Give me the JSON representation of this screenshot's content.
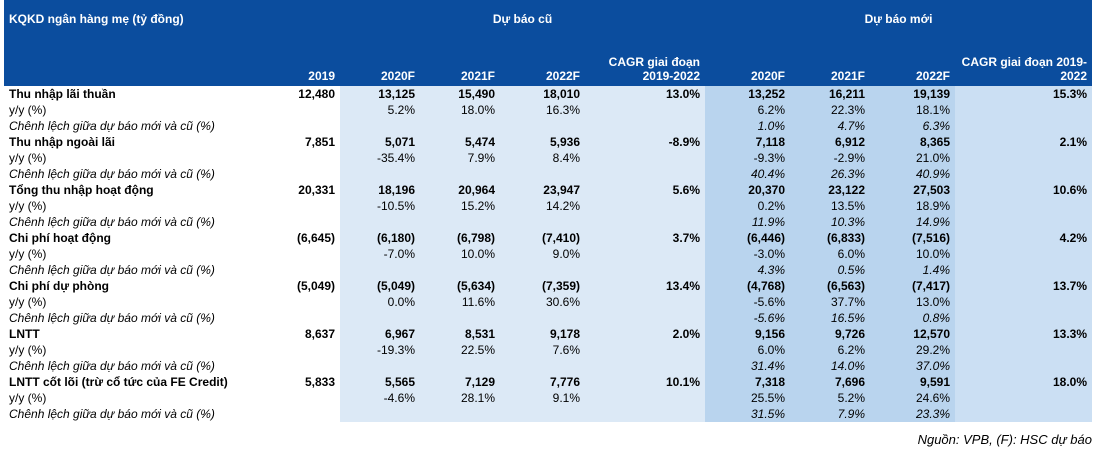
{
  "header": {
    "title": "KQKD ngân hàng mẹ (tỷ đồng)",
    "old_group": "Dự báo cũ",
    "new_group": "Dự báo mới",
    "columns": [
      "2019",
      "2020F",
      "2021F",
      "2022F",
      "CAGR giai đoạn 2019-2022",
      "2020F",
      "2021F",
      "2022F",
      "CAGR giai đoạn 2019-2022"
    ]
  },
  "rows": [
    [
      "Thu nhập lãi thuần",
      "12,480",
      "13,125",
      "15,490",
      "18,010",
      "13.0%",
      "13,252",
      "16,211",
      "19,139",
      "15.3%"
    ],
    [
      "y/y (%)",
      null,
      "5.2%",
      "18.0%",
      "16.3%",
      null,
      "6.2%",
      "22.3%",
      "18.1%",
      null
    ],
    [
      "Chênh lệch giữa dự báo mới và cũ (%)",
      null,
      null,
      null,
      null,
      null,
      "1.0%",
      "4.7%",
      "6.3%",
      null
    ],
    [
      "Thu nhập ngoài lãi",
      "7,851",
      "5,071",
      "5,474",
      "5,936",
      "-8.9%",
      "7,118",
      "6,912",
      "8,365",
      "2.1%"
    ],
    [
      "y/y (%)",
      null,
      "-35.4%",
      "7.9%",
      "8.4%",
      null,
      "-9.3%",
      "-2.9%",
      "21.0%",
      null
    ],
    [
      "Chênh lệch giữa dự báo mới và cũ (%)",
      null,
      null,
      null,
      null,
      null,
      "40.4%",
      "26.3%",
      "40.9%",
      null
    ],
    [
      "Tổng thu nhập hoạt động",
      "20,331",
      "18,196",
      "20,964",
      "23,947",
      "5.6%",
      "20,370",
      "23,122",
      "27,503",
      "10.6%"
    ],
    [
      "y/y (%)",
      null,
      "-10.5%",
      "15.2%",
      "14.2%",
      null,
      "0.2%",
      "13.5%",
      "18.9%",
      null
    ],
    [
      "Chênh lệch giữa dự báo mới và cũ (%)",
      null,
      null,
      null,
      null,
      null,
      "11.9%",
      "10.3%",
      "14.9%",
      null
    ],
    [
      "Chi phí hoạt động",
      "(6,645)",
      "(6,180)",
      "(6,798)",
      "(7,410)",
      "3.7%",
      "(6,446)",
      "(6,833)",
      "(7,516)",
      "4.2%"
    ],
    [
      "y/y (%)",
      null,
      "-7.0%",
      "10.0%",
      "9.0%",
      null,
      "-3.0%",
      "6.0%",
      "10.0%",
      null
    ],
    [
      "Chênh lệch giữa dự báo mới và cũ (%)",
      null,
      null,
      null,
      null,
      null,
      "4.3%",
      "0.5%",
      "1.4%",
      null
    ],
    [
      "Chi phí dự phòng",
      "(5,049)",
      "(5,049)",
      "(5,634)",
      "(7,359)",
      "13.4%",
      "(4,768)",
      "(6,563)",
      "(7,417)",
      "13.7%"
    ],
    [
      "y/y (%)",
      null,
      "0.0%",
      "11.6%",
      "30.6%",
      null,
      "-5.6%",
      "37.7%",
      "13.0%",
      null
    ],
    [
      "Chênh lệch giữa dự báo mới và cũ (%)",
      null,
      null,
      null,
      null,
      null,
      "-5.6%",
      "16.5%",
      "0.8%",
      null
    ],
    [
      "LNTT",
      "8,637",
      "6,967",
      "8,531",
      "9,178",
      "2.0%",
      "9,156",
      "9,726",
      "12,570",
      "13.3%"
    ],
    [
      "y/y (%)",
      null,
      "-19.3%",
      "22.5%",
      "7.6%",
      null,
      "6.0%",
      "6.2%",
      "29.2%",
      null
    ],
    [
      "Chênh lệch giữa dự báo mới và cũ (%)",
      null,
      null,
      null,
      null,
      null,
      "31.4%",
      "14.0%",
      "37.0%",
      null
    ],
    [
      "LNTT cốt lõi (trừ cổ tức của FE Credit)",
      "5,833",
      "5,565",
      "7,129",
      "7,776",
      "10.1%",
      "7,318",
      "7,696",
      "9,591",
      "18.0%"
    ],
    [
      "y/y (%)",
      null,
      "-4.6%",
      "28.1%",
      "9.1%",
      null,
      "25.5%",
      "5.2%",
      "24.6%",
      null
    ],
    [
      "Chênh lệch giữa dự báo mới và cũ (%)",
      null,
      null,
      null,
      null,
      null,
      "31.5%",
      "7.9%",
      "23.3%",
      null
    ]
  ],
  "source": "Nguồn: VPB, (F): HSC dự báo"
}
